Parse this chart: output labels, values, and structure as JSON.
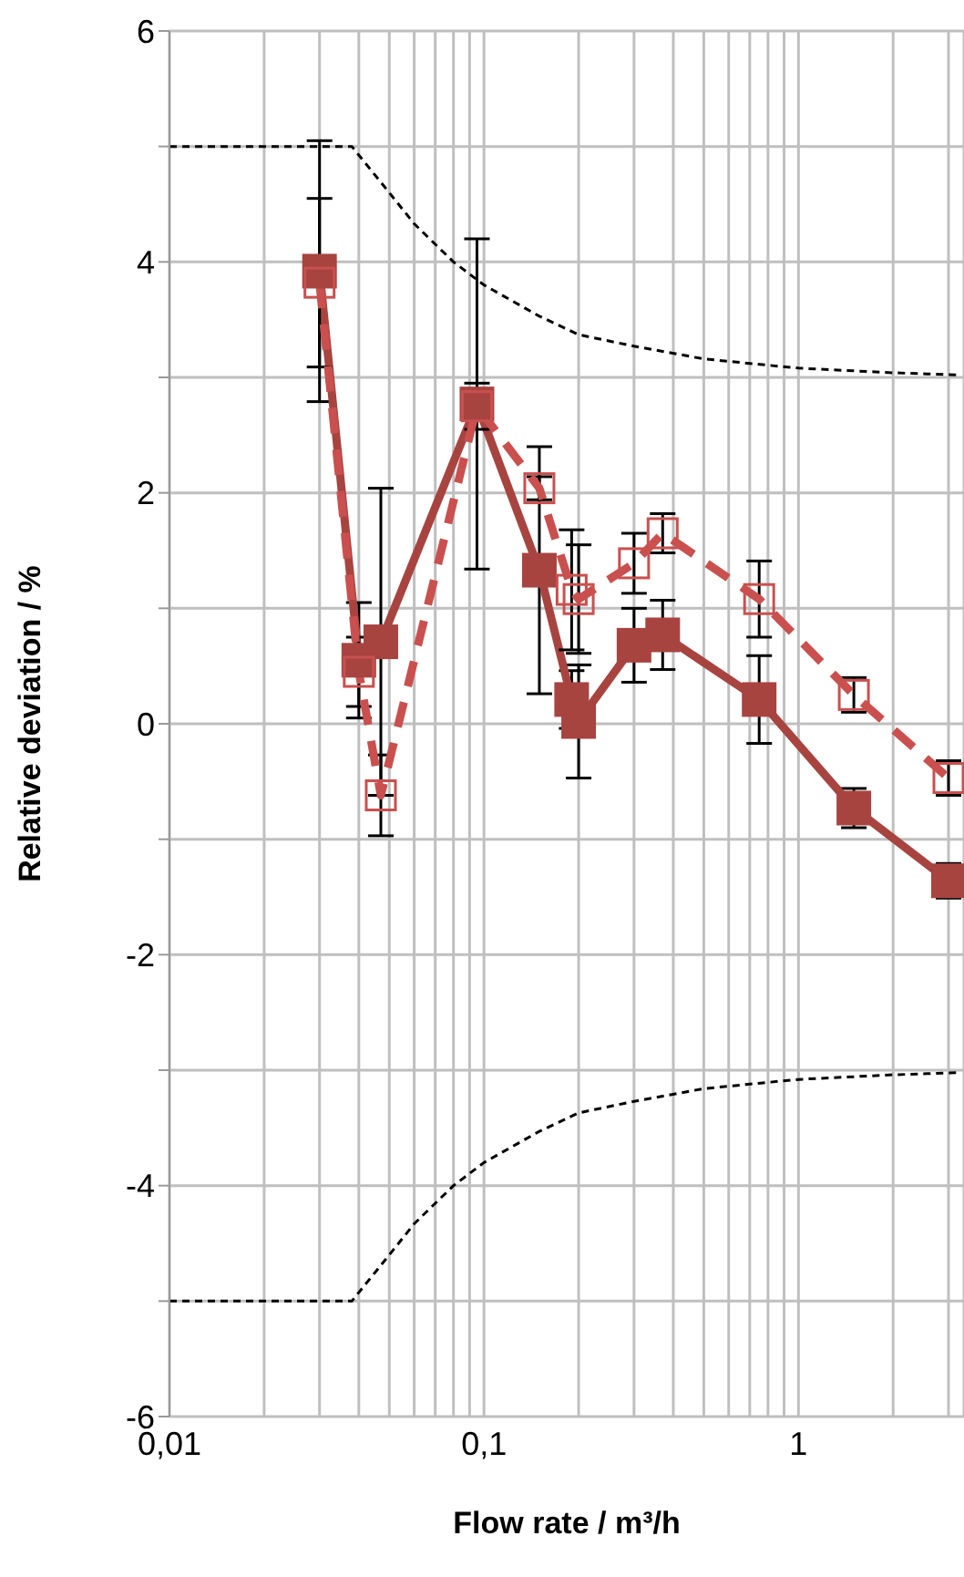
{
  "chart_data": {
    "type": "line",
    "xlabel": "Flow rate / m³/h",
    "ylabel": "Relative deviation / %",
    "log": "x",
    "grid": true,
    "xlim": [
      0.01,
      3.36
    ],
    "ylim": [
      -6,
      6
    ],
    "xticks": [
      {
        "value": 0.01,
        "label": "0,01"
      },
      {
        "value": 0.02,
        "label": null
      },
      {
        "value": 0.03,
        "label": null
      },
      {
        "value": 0.04,
        "label": null
      },
      {
        "value": 0.05,
        "label": null
      },
      {
        "value": 0.06,
        "label": null
      },
      {
        "value": 0.07,
        "label": null
      },
      {
        "value": 0.08,
        "label": null
      },
      {
        "value": 0.09,
        "label": null
      },
      {
        "value": 0.1,
        "label": "0,1"
      },
      {
        "value": 0.2,
        "label": null
      },
      {
        "value": 0.3,
        "label": null
      },
      {
        "value": 0.4,
        "label": null
      },
      {
        "value": 0.5,
        "label": null
      },
      {
        "value": 0.6,
        "label": null
      },
      {
        "value": 0.7,
        "label": null
      },
      {
        "value": 0.8,
        "label": null
      },
      {
        "value": 0.9,
        "label": null
      },
      {
        "value": 1,
        "label": "1"
      },
      {
        "value": 2,
        "label": null
      },
      {
        "value": 3,
        "label": null
      }
    ],
    "yticks": [
      -6,
      {
        "value": -5,
        "label": null
      },
      -4,
      {
        "value": -3,
        "label": null
      },
      -2,
      {
        "value": -1,
        "label": null
      },
      0,
      {
        "value": 1,
        "label": null
      },
      2,
      {
        "value": 3,
        "label": null
      },
      4,
      {
        "value": 5,
        "label": null
      },
      6
    ],
    "series": [
      {
        "color": "#000000",
        "line_style": "dashed",
        "marker": "none",
        "x": [
          0.01,
          0.038,
          0.05,
          0.06,
          0.08,
          0.1,
          0.15,
          0.2,
          0.3,
          0.5,
          1,
          2,
          3.3
        ],
        "values": [
          5,
          5,
          4.6,
          4.33,
          4,
          3.8,
          3.53,
          3.37,
          3.27,
          3.16,
          3.08,
          3.04,
          3.02
        ]
      },
      {
        "color": "#000000",
        "line_style": "dashed",
        "marker": "none",
        "x": [
          0.01,
          0.038,
          0.05,
          0.06,
          0.08,
          0.1,
          0.15,
          0.2,
          0.3,
          0.5,
          1,
          2,
          3.3
        ],
        "values": [
          -5,
          -5,
          -4.6,
          -4.33,
          -4,
          -3.8,
          -3.53,
          -3.37,
          -3.27,
          -3.16,
          -3.08,
          -3.04,
          -3.02
        ]
      },
      {
        "color": "#c9504e",
        "line_style": "dashed",
        "marker": "square",
        "x": [
          0.03,
          0.04,
          0.047,
          0.095,
          0.15,
          0.19,
          0.2,
          0.3,
          0.37,
          0.75,
          1.5,
          3
        ],
        "values": [
          3.82,
          0.45,
          -0.62,
          2.75,
          2.04,
          1.16,
          1.08,
          1.39,
          1.65,
          1.08,
          0.25,
          -0.47
        ],
        "errors": [
          0.73,
          0.3,
          0.35,
          0.2,
          0.1,
          0.52,
          0.47,
          0.26,
          0.17,
          0.33,
          0.15,
          0.15
        ]
      },
      {
        "color": "#a84440",
        "line_style": "solid",
        "marker": "square",
        "x": [
          0.03,
          0.04,
          0.047,
          0.095,
          0.15,
          0.19,
          0.2,
          0.3,
          0.37,
          0.75,
          1.5,
          3
        ],
        "values": [
          3.92,
          0.55,
          0.71,
          2.77,
          1.33,
          0.21,
          0.02,
          0.68,
          0.77,
          0.21,
          -0.73,
          -1.36
        ],
        "errors": [
          1.13,
          0.5,
          1.33,
          1.43,
          1.07,
          0.25,
          0.49,
          0.32,
          0.3,
          0.38,
          0.17,
          0.15
        ]
      }
    ]
  }
}
